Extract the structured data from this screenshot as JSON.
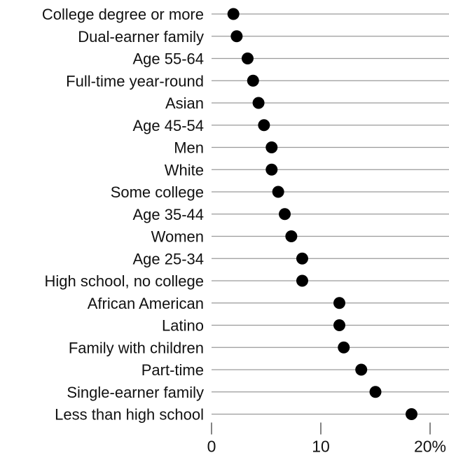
{
  "chart_data": {
    "type": "scatter",
    "orientation": "horizontal-dot-plot",
    "categories": [
      "College degree or more",
      "Dual-earner family",
      "Age 55-64",
      "Full-time year-round",
      "Asian",
      "Age 45-54",
      "Men",
      "White",
      "Some college",
      "Age 35-44",
      "Women",
      "Age 25-34",
      "High school, no college",
      "African American",
      "Latino",
      "Family with children",
      "Part-time",
      "Single-earner family",
      "Less than high school"
    ],
    "values": [
      2.0,
      2.3,
      3.3,
      3.8,
      4.3,
      4.8,
      5.5,
      5.5,
      6.1,
      6.7,
      7.3,
      8.3,
      8.3,
      11.7,
      11.7,
      12.1,
      13.7,
      15.0,
      18.3
    ],
    "xlim": [
      0,
      22
    ],
    "xticks": [
      0,
      10,
      20
    ],
    "xtick_labels": [
      "0",
      "10",
      "20%"
    ],
    "title": "",
    "xlabel": "",
    "ylabel": "",
    "grid": true,
    "colors": {
      "dot": "#000000",
      "grid": "#9a9a9a"
    }
  }
}
